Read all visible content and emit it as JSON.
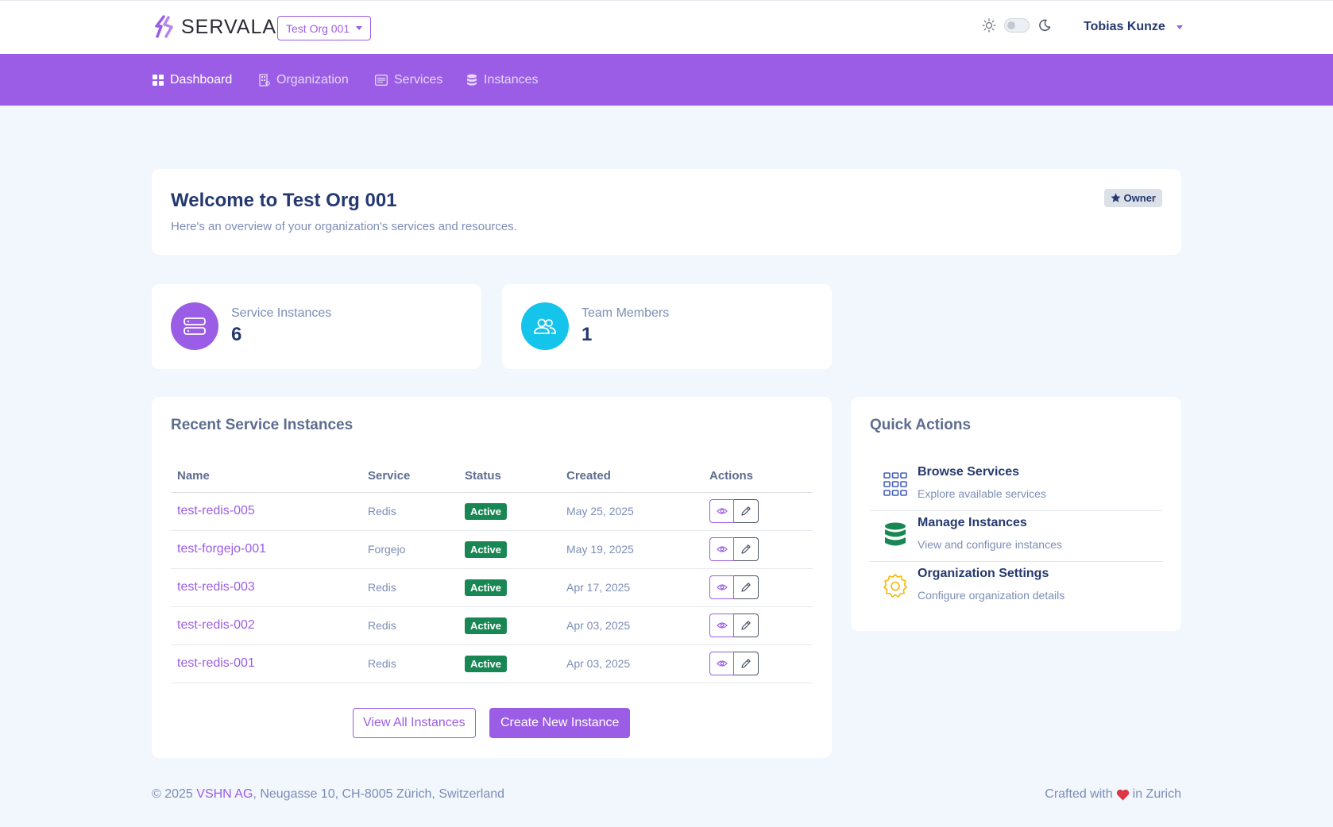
{
  "header": {
    "brand": "SERVALA",
    "org_selector": "Test Org 001",
    "user_name": "Tobias Kunze"
  },
  "nav": [
    {
      "label": "Dashboard",
      "icon": "grid-icon",
      "active": true
    },
    {
      "label": "Organization",
      "icon": "building-icon",
      "active": false
    },
    {
      "label": "Services",
      "icon": "list-card-icon",
      "active": false
    },
    {
      "label": "Instances",
      "icon": "database-icon",
      "active": false
    }
  ],
  "welcome": {
    "title": "Welcome to Test Org 001",
    "subtitle": "Here's an overview of your organization's services and resources.",
    "role_badge": "Owner"
  },
  "stats": [
    {
      "label": "Service Instances",
      "value": "6",
      "color": "#9b5de5",
      "icon": "server-icon"
    },
    {
      "label": "Team Members",
      "value": "1",
      "color": "#14c4ea",
      "icon": "people-icon"
    }
  ],
  "recent": {
    "title": "Recent Service Instances",
    "columns": [
      "Name",
      "Service",
      "Status",
      "Created",
      "Actions"
    ],
    "rows": [
      {
        "name": "test-redis-005",
        "service": "Redis",
        "status": "Active",
        "created": "May 25, 2025"
      },
      {
        "name": "test-forgejo-001",
        "service": "Forgejo",
        "status": "Active",
        "created": "May 19, 2025"
      },
      {
        "name": "test-redis-003",
        "service": "Redis",
        "status": "Active",
        "created": "Apr 17, 2025"
      },
      {
        "name": "test-redis-002",
        "service": "Redis",
        "status": "Active",
        "created": "Apr 03, 2025"
      },
      {
        "name": "test-redis-001",
        "service": "Redis",
        "status": "Active",
        "created": "Apr 03, 2025"
      }
    ],
    "view_all_label": "View All Instances",
    "create_label": "Create New Instance"
  },
  "quick_actions": {
    "title": "Quick Actions",
    "items": [
      {
        "title": "Browse Services",
        "desc": "Explore available services",
        "icon": "grid-3x3-icon",
        "color": "#435ebe"
      },
      {
        "title": "Manage Instances",
        "desc": "View and configure instances",
        "icon": "database-icon",
        "color": "#198754"
      },
      {
        "title": "Organization Settings",
        "desc": "Configure organization details",
        "icon": "gear-icon",
        "color": "#f5b800"
      }
    ]
  },
  "footer": {
    "copyright_prefix": "© 2025 ",
    "company": "VSHN AG",
    "address": ", Neugasse 10, CH-8005 Zürich, Switzerland",
    "crafted_prefix": "Crafted with",
    "crafted_suffix": "in Zurich"
  },
  "colors": {
    "primary": "#9b5de5",
    "success": "#198754",
    "heart": "#dc3545"
  }
}
